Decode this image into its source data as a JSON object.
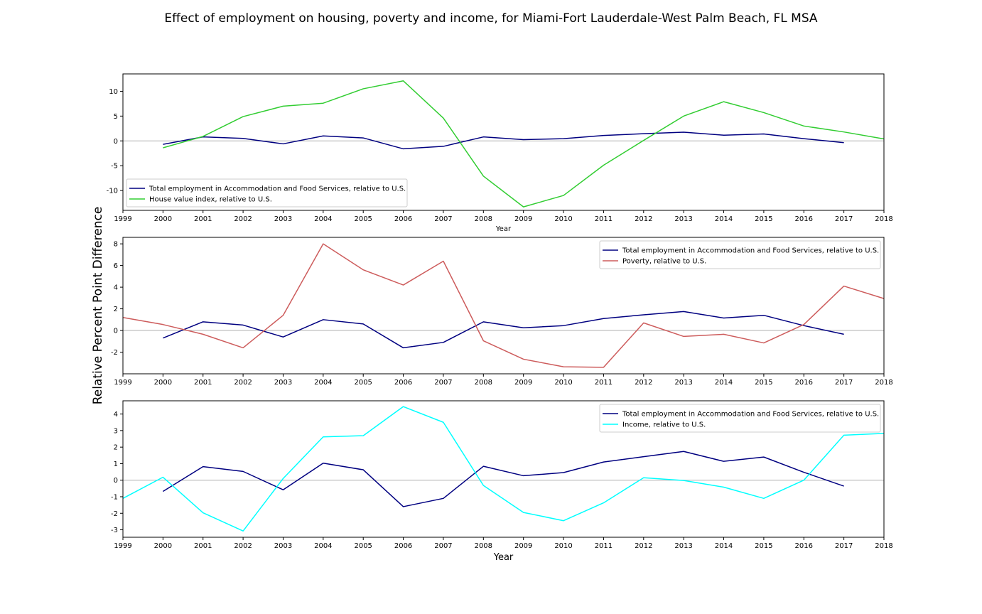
{
  "figure": {
    "title": "Effect of employment on housing, poverty and income, for Miami-Fort Lauderdale-West Palm Beach, FL MSA",
    "ylabel": "Relative Percent Point Difference"
  },
  "chart_data": [
    {
      "type": "line",
      "xlabel": "Year",
      "xlim": [
        1999,
        2018
      ],
      "ylim": [
        -14,
        13.5
      ],
      "xticks": [
        "1999",
        "2000",
        "2001",
        "2002",
        "2003",
        "2004",
        "2005",
        "2006",
        "2007",
        "2008",
        "2009",
        "2010",
        "2011",
        "2012",
        "2013",
        "2014",
        "2015",
        "2016",
        "2017",
        "2018"
      ],
      "yticks": [
        "-10",
        "-5",
        "0",
        "5",
        "10"
      ],
      "legend_position": "lower-left",
      "zero_line": true,
      "series": [
        {
          "name": "Total employment in Accommodation and Food Services, relative to U.S.",
          "color": "#000080",
          "x": [
            2000,
            2001,
            2002,
            2003,
            2004,
            2005,
            2006,
            2007,
            2008,
            2009,
            2010,
            2011,
            2012,
            2013,
            2014,
            2015,
            2016,
            2017
          ],
          "y": [
            -0.7,
            0.8,
            0.5,
            -0.6,
            1.0,
            0.6,
            -1.6,
            -1.1,
            0.8,
            0.25,
            0.45,
            1.1,
            1.45,
            1.75,
            1.15,
            1.4,
            0.45,
            -0.35
          ]
        },
        {
          "name": "House value index, relative to U.S.",
          "color": "#32cd32",
          "x": [
            2000,
            2001,
            2002,
            2003,
            2004,
            2005,
            2006,
            2007,
            2008,
            2009,
            2010,
            2011,
            2012,
            2013,
            2014,
            2015,
            2016,
            2017,
            2018
          ],
          "y": [
            -1.4,
            0.9,
            4.9,
            7.0,
            7.6,
            10.5,
            12.1,
            4.6,
            -7.1,
            -13.3,
            -11.0,
            -4.9,
            0.1,
            5.0,
            7.9,
            5.7,
            3.0,
            1.8,
            0.4
          ]
        }
      ]
    },
    {
      "type": "line",
      "xlabel": "",
      "xlim": [
        1999,
        2018
      ],
      "ylim": [
        -4,
        8.6
      ],
      "xticks": [
        "1999",
        "2000",
        "2001",
        "2002",
        "2003",
        "2004",
        "2005",
        "2006",
        "2007",
        "2008",
        "2009",
        "2010",
        "2011",
        "2012",
        "2013",
        "2014",
        "2015",
        "2016",
        "2017",
        "2018"
      ],
      "yticks": [
        "-2",
        "0",
        "2",
        "4",
        "6",
        "8"
      ],
      "legend_position": "upper-right",
      "zero_line": true,
      "series": [
        {
          "name": "Total employment in Accommodation and Food Services, relative to U.S.",
          "color": "#000080",
          "x": [
            2000,
            2001,
            2002,
            2003,
            2004,
            2005,
            2006,
            2007,
            2008,
            2009,
            2010,
            2011,
            2012,
            2013,
            2014,
            2015,
            2016,
            2017
          ],
          "y": [
            -0.7,
            0.8,
            0.5,
            -0.6,
            1.0,
            0.6,
            -1.6,
            -1.1,
            0.8,
            0.25,
            0.45,
            1.1,
            1.45,
            1.75,
            1.15,
            1.4,
            0.45,
            -0.35
          ]
        },
        {
          "name": "Poverty, relative to U.S.",
          "color": "#cd5c5c",
          "x": [
            1999,
            2000,
            2001,
            2002,
            2003,
            2004,
            2005,
            2006,
            2007,
            2008,
            2009,
            2010,
            2011,
            2012,
            2013,
            2014,
            2015,
            2016,
            2017,
            2018
          ],
          "y": [
            1.2,
            0.55,
            -0.35,
            -1.6,
            1.4,
            8.0,
            5.6,
            4.2,
            6.4,
            -0.95,
            -2.65,
            -3.35,
            -3.4,
            0.7,
            -0.55,
            -0.35,
            -1.15,
            0.55,
            4.1,
            2.95
          ]
        }
      ]
    },
    {
      "type": "line",
      "xlabel": "Year",
      "xlim": [
        1999,
        2018
      ],
      "ylim": [
        -3.45,
        4.8
      ],
      "xticks": [
        "1999",
        "2000",
        "2001",
        "2002",
        "2003",
        "2004",
        "2005",
        "2006",
        "2007",
        "2008",
        "2009",
        "2010",
        "2011",
        "2012",
        "2013",
        "2014",
        "2015",
        "2016",
        "2017",
        "2018"
      ],
      "yticks": [
        "-3",
        "-2",
        "-1",
        "0",
        "1",
        "2",
        "3",
        "4"
      ],
      "legend_position": "upper-right",
      "zero_line": true,
      "series": [
        {
          "name": "Total employment in Accommodation and Food Services, relative to U.S.",
          "color": "#000080",
          "x": [
            2000,
            2001,
            2002,
            2003,
            2004,
            2005,
            2006,
            2007,
            2008,
            2009,
            2010,
            2011,
            2012,
            2013,
            2014,
            2015,
            2016,
            2017
          ],
          "y": [
            -0.68,
            0.82,
            0.53,
            -0.58,
            1.03,
            0.63,
            -1.6,
            -1.1,
            0.84,
            0.27,
            0.46,
            1.1,
            1.42,
            1.74,
            1.14,
            1.4,
            0.48,
            -0.36
          ]
        },
        {
          "name": "Income, relative to U.S.",
          "color": "#00ffff",
          "x": [
            1999,
            2000,
            2001,
            2002,
            2003,
            2004,
            2005,
            2006,
            2007,
            2008,
            2009,
            2010,
            2011,
            2012,
            2013,
            2014,
            2015,
            2016,
            2017,
            2018
          ],
          "y": [
            -1.1,
            0.18,
            -1.97,
            -3.07,
            0.1,
            2.62,
            2.69,
            4.45,
            3.5,
            -0.32,
            -1.95,
            -2.45,
            -1.37,
            0.15,
            -0.02,
            -0.42,
            -1.1,
            0.0,
            2.72,
            2.83
          ]
        }
      ]
    }
  ]
}
